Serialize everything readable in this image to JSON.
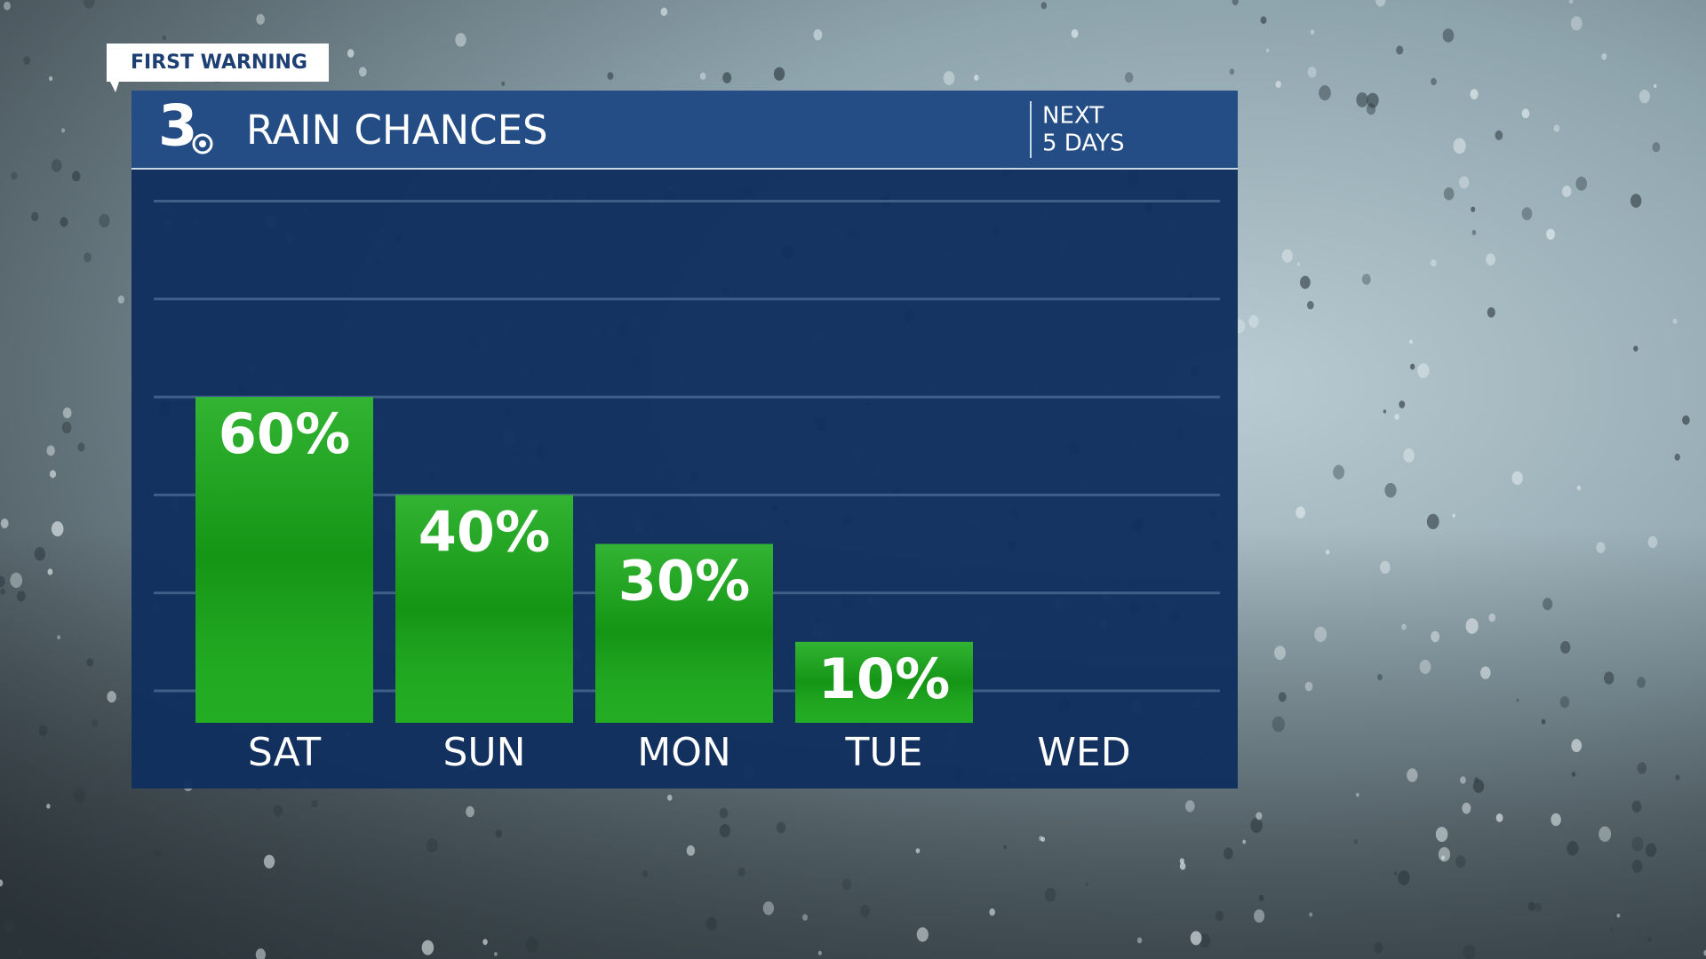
{
  "chart_data": {
    "type": "bar",
    "badge": "FIRST WARNING",
    "logo": "3",
    "title": "RAIN CHANCES",
    "subtitle": [
      "NEXT",
      "5 DAYS"
    ],
    "categories": [
      "SAT",
      "SUN",
      "MON",
      "TUE",
      "WED"
    ],
    "values": [
      60,
      40,
      30,
      10,
      null
    ],
    "value_labels": [
      "60%",
      "40%",
      "30%",
      "10%",
      null
    ],
    "color": "#17a917",
    "ylim": [
      0,
      100
    ],
    "yticks": [
      0,
      20,
      40,
      60,
      80,
      100
    ],
    "grid": true
  }
}
